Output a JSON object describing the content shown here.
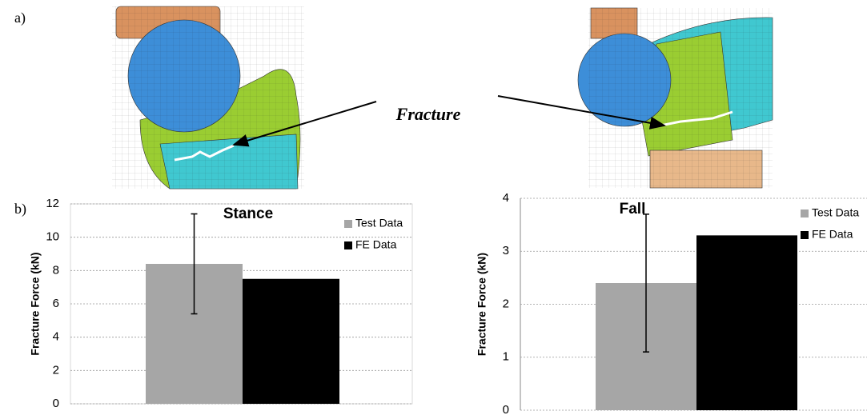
{
  "figure": {
    "panel_a": "a)",
    "panel_b": "b)",
    "annotation": "Fracture"
  },
  "chart_data": [
    {
      "type": "bar",
      "title": "Stance",
      "ylabel": "Fracture Force (kN)",
      "categories": [
        null
      ],
      "series": [
        {
          "name": "Test Data",
          "color": "#a6a6a6",
          "values": [
            8.4
          ],
          "errors": [
            3.0
          ]
        },
        {
          "name": "FE Data",
          "color": "#000000",
          "values": [
            7.5
          ]
        }
      ],
      "ylim": [
        0,
        12
      ],
      "yticks": [
        0,
        2,
        4,
        6,
        8,
        10,
        12
      ],
      "grid": true,
      "legend": "upper right"
    },
    {
      "type": "bar",
      "title": "Fall",
      "ylabel": "Fracture Force (kN)",
      "categories": [
        null
      ],
      "series": [
        {
          "name": "Test Data",
          "color": "#a6a6a6",
          "values": [
            2.4
          ],
          "errors": [
            1.3
          ]
        },
        {
          "name": "FE Data",
          "color": "#000000",
          "values": [
            3.3
          ]
        }
      ],
      "ylim": [
        0,
        4
      ],
      "yticks": [
        0,
        1,
        2,
        3,
        4
      ],
      "grid": true,
      "legend": "upper right"
    }
  ]
}
